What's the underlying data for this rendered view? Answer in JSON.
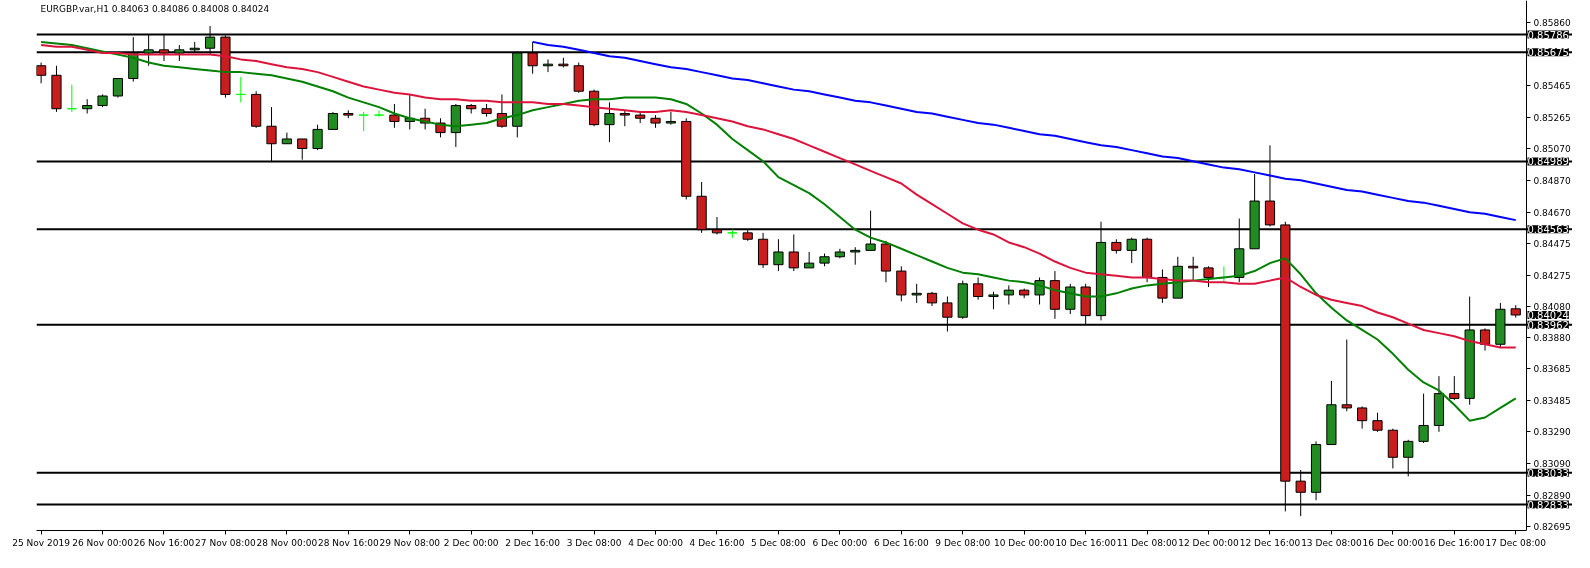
{
  "chart_data": {
    "type": "candlestick",
    "title": "EURGBP.var,H1  0.84063 0.84086 0.84008 0.84024",
    "categories": [
      "25 Nov 2019",
      null,
      null,
      null,
      "26 Nov 00:00",
      null,
      null,
      null,
      "26 Nov 16:00",
      null,
      null,
      null,
      "27 Nov 08:00",
      null,
      null,
      null,
      "28 Nov 00:00",
      null,
      null,
      null,
      "28 Nov 16:00",
      null,
      null,
      null,
      "29 Nov 08:00",
      null,
      null,
      null,
      "2 Dec 00:00",
      null,
      null,
      null,
      "2 Dec 16:00",
      null,
      null,
      null,
      "3 Dec 08:00",
      null,
      null,
      null,
      "4 Dec 00:00",
      null,
      null,
      null,
      "4 Dec 16:00",
      null,
      null,
      null,
      "5 Dec 08:00",
      null,
      null,
      null,
      "6 Dec 00:00",
      null,
      null,
      null,
      "6 Dec 16:00",
      null,
      null,
      null,
      "9 Dec 08:00",
      null,
      null,
      null,
      "10 Dec 00:00",
      null,
      null,
      null,
      "10 Dec 16:00",
      null,
      null,
      null,
      "11 Dec 08:00",
      null,
      null,
      null,
      "12 Dec 00:00",
      null,
      null,
      null,
      "12 Dec 16:00",
      null,
      null,
      null,
      "13 Dec 08:00",
      null,
      null,
      null,
      "16 Dec 00:00",
      null,
      null,
      null,
      "16 Dec 16:00",
      null,
      null,
      null,
      "17 Dec 08:00"
    ],
    "ohlc": [
      [
        0.8559,
        0.8561,
        0.8548,
        0.8553
      ],
      [
        0.8553,
        0.8559,
        0.853,
        0.8532
      ],
      [
        0.8532,
        0.8547,
        0.853,
        0.8532
      ],
      [
        0.8532,
        0.8538,
        0.8529,
        0.8534
      ],
      [
        0.8534,
        0.8541,
        0.8533,
        0.854
      ],
      [
        0.854,
        0.8551,
        0.8539,
        0.8551
      ],
      [
        0.8551,
        0.8577,
        0.8549,
        0.8567
      ],
      [
        0.8567,
        0.8579,
        0.8559,
        0.8569
      ],
      [
        0.8569,
        0.8579,
        0.8562,
        0.8567
      ],
      [
        0.8567,
        0.8572,
        0.8562,
        0.8569
      ],
      [
        0.8569,
        0.8574,
        0.8567,
        0.857
      ],
      [
        0.857,
        0.8584,
        0.8566,
        0.8577
      ],
      [
        0.8577,
        0.8578,
        0.8539,
        0.8541
      ],
      [
        0.8541,
        0.8552,
        0.8536,
        0.8541
      ],
      [
        0.8541,
        0.8543,
        0.852,
        0.8521
      ],
      [
        0.8521,
        0.8533,
        0.8499,
        0.851
      ],
      [
        0.851,
        0.8517,
        0.851,
        0.8513
      ],
      [
        0.8513,
        0.8513,
        0.85,
        0.8507
      ],
      [
        0.8507,
        0.8522,
        0.8506,
        0.8519
      ],
      [
        0.8519,
        0.853,
        0.8519,
        0.8529
      ],
      [
        0.8529,
        0.8531,
        0.8526,
        0.8528
      ],
      [
        0.8528,
        0.853,
        0.8518,
        0.8528
      ],
      [
        0.8528,
        0.8531,
        0.8527,
        0.8528
      ],
      [
        0.8528,
        0.8535,
        0.852,
        0.8524
      ],
      [
        0.8524,
        0.8541,
        0.8519,
        0.8526
      ],
      [
        0.8526,
        0.8532,
        0.8519,
        0.8523
      ],
      [
        0.8523,
        0.8526,
        0.8514,
        0.8517
      ],
      [
        0.8517,
        0.8535,
        0.8508,
        0.8534
      ],
      [
        0.8534,
        0.8535,
        0.8529,
        0.8532
      ],
      [
        0.8532,
        0.8535,
        0.8527,
        0.8529
      ],
      [
        0.8529,
        0.8541,
        0.852,
        0.8521
      ],
      [
        0.8521,
        0.8568,
        0.8514,
        0.8567
      ],
      [
        0.8567,
        0.8574,
        0.8554,
        0.8559
      ],
      [
        0.8559,
        0.8563,
        0.8555,
        0.856
      ],
      [
        0.856,
        0.8564,
        0.8558,
        0.8559
      ],
      [
        0.8559,
        0.8561,
        0.8542,
        0.8543
      ],
      [
        0.8543,
        0.8544,
        0.8521,
        0.8522
      ],
      [
        0.8522,
        0.8536,
        0.8511,
        0.8529
      ],
      [
        0.8529,
        0.8531,
        0.8521,
        0.8528
      ],
      [
        0.8528,
        0.853,
        0.8523,
        0.8526
      ],
      [
        0.8526,
        0.8528,
        0.852,
        0.8523
      ],
      [
        0.8523,
        0.853,
        0.8522,
        0.8524
      ],
      [
        0.8524,
        0.8526,
        0.8475,
        0.8477
      ],
      [
        0.8477,
        0.8486,
        0.8454,
        0.8456
      ],
      [
        0.8456,
        0.8464,
        0.8453,
        0.8454
      ],
      [
        0.8454,
        0.8456,
        0.8451,
        0.8454
      ],
      [
        0.8454,
        0.8456,
        0.8449,
        0.845
      ],
      [
        0.845,
        0.8454,
        0.8432,
        0.8434
      ],
      [
        0.8434,
        0.845,
        0.843,
        0.8442
      ],
      [
        0.8442,
        0.8453,
        0.843,
        0.8432
      ],
      [
        0.8432,
        0.8442,
        0.8432,
        0.8435
      ],
      [
        0.8435,
        0.8441,
        0.8433,
        0.8439
      ],
      [
        0.8439,
        0.8444,
        0.8438,
        0.8442
      ],
      [
        0.8442,
        0.8445,
        0.8434,
        0.8443
      ],
      [
        0.8443,
        0.8468,
        0.8443,
        0.8447
      ],
      [
        0.8447,
        0.8449,
        0.8423,
        0.843
      ],
      [
        0.843,
        0.8433,
        0.8411,
        0.8415
      ],
      [
        0.8415,
        0.8422,
        0.841,
        0.8416
      ],
      [
        0.8416,
        0.8417,
        0.8408,
        0.841
      ],
      [
        0.841,
        0.8414,
        0.8392,
        0.8401
      ],
      [
        0.8401,
        0.8424,
        0.84,
        0.8422
      ],
      [
        0.8422,
        0.8426,
        0.8412,
        0.8414
      ],
      [
        0.8414,
        0.8417,
        0.8406,
        0.8415
      ],
      [
        0.8415,
        0.8421,
        0.8409,
        0.8418
      ],
      [
        0.8418,
        0.8419,
        0.8413,
        0.8415
      ],
      [
        0.8415,
        0.8426,
        0.8409,
        0.8424
      ],
      [
        0.8424,
        0.843,
        0.84,
        0.8406
      ],
      [
        0.8406,
        0.8422,
        0.8403,
        0.842
      ],
      [
        0.842,
        0.8422,
        0.8396,
        0.8402
      ],
      [
        0.8402,
        0.8461,
        0.8399,
        0.8448
      ],
      [
        0.8448,
        0.845,
        0.8441,
        0.8443
      ],
      [
        0.8443,
        0.8451,
        0.8435,
        0.845
      ],
      [
        0.845,
        0.8451,
        0.8423,
        0.8426
      ],
      [
        0.8426,
        0.8431,
        0.841,
        0.8413
      ],
      [
        0.8413,
        0.8439,
        0.8413,
        0.8433
      ],
      [
        0.8433,
        0.8439,
        0.8424,
        0.8432
      ],
      [
        0.8432,
        0.8433,
        0.842,
        0.8426
      ],
      [
        0.8426,
        0.8433,
        0.8423,
        0.8426
      ],
      [
        0.8426,
        0.8463,
        0.8423,
        0.8444
      ],
      [
        0.8444,
        0.8491,
        0.8444,
        0.8474
      ],
      [
        0.8474,
        0.8509,
        0.8458,
        0.8459
      ],
      [
        0.8459,
        0.8461,
        0.8279,
        0.8298
      ],
      [
        0.8298,
        0.8305,
        0.8276,
        0.8291
      ],
      [
        0.8291,
        0.8323,
        0.8286,
        0.8321
      ],
      [
        0.8321,
        0.8361,
        0.8321,
        0.8346
      ],
      [
        0.8346,
        0.8387,
        0.8342,
        0.8344
      ],
      [
        0.8344,
        0.8345,
        0.8331,
        0.8336
      ],
      [
        0.8336,
        0.8341,
        0.8329,
        0.833
      ],
      [
        0.833,
        0.8331,
        0.8306,
        0.8313
      ],
      [
        0.8313,
        0.8324,
        0.8301,
        0.8323
      ],
      [
        0.8323,
        0.8353,
        0.8322,
        0.8333
      ],
      [
        0.8333,
        0.8364,
        0.8329,
        0.8353
      ],
      [
        0.8353,
        0.8364,
        0.8349,
        0.835
      ],
      [
        0.835,
        0.8414,
        0.8346,
        0.8393
      ],
      [
        0.8393,
        0.8394,
        0.838,
        0.8384
      ],
      [
        0.8384,
        0.841,
        0.8382,
        0.8406
      ],
      [
        0.84063,
        0.84086,
        0.84008,
        0.84024
      ]
    ],
    "colors": [
      "#c81e1e",
      "#c81e1e",
      "#00ff00",
      "#228b22",
      "#228b22",
      "#228b22",
      "#228b22",
      "#228b22",
      "#c81e1e",
      "#228b22",
      "#228b22",
      "#228b22",
      "#c81e1e",
      "#00ff00",
      "#c81e1e",
      "#c81e1e",
      "#228b22",
      "#c81e1e",
      "#228b22",
      "#228b22",
      "#c81e1e",
      "#00ff00",
      "#00ff00",
      "#c81e1e",
      "#228b22",
      "#c81e1e",
      "#c81e1e",
      "#228b22",
      "#c81e1e",
      "#c81e1e",
      "#c81e1e",
      "#228b22",
      "#c81e1e",
      "#228b22",
      "#c81e1e",
      "#c81e1e",
      "#c81e1e",
      "#228b22",
      "#c81e1e",
      "#c81e1e",
      "#c81e1e",
      "#228b22",
      "#c81e1e",
      "#c81e1e",
      "#c81e1e",
      "#00ff00",
      "#c81e1e",
      "#c81e1e",
      "#228b22",
      "#c81e1e",
      "#228b22",
      "#228b22",
      "#228b22",
      "#228b22",
      "#228b22",
      "#c81e1e",
      "#c81e1e",
      "#228b22",
      "#c81e1e",
      "#c81e1e",
      "#228b22",
      "#c81e1e",
      "#228b22",
      "#228b22",
      "#c81e1e",
      "#228b22",
      "#c81e1e",
      "#228b22",
      "#c81e1e",
      "#228b22",
      "#c81e1e",
      "#228b22",
      "#c81e1e",
      "#c81e1e",
      "#228b22",
      "#c81e1e",
      "#c81e1e",
      "#00ff00",
      "#228b22",
      "#228b22",
      "#c81e1e",
      "#c81e1e",
      "#c81e1e",
      "#228b22",
      "#228b22",
      "#c81e1e",
      "#c81e1e",
      "#c81e1e",
      "#c81e1e",
      "#228b22",
      "#228b22",
      "#228b22",
      "#c81e1e",
      "#228b22",
      "#c81e1e",
      "#228b22",
      "#c81e1e"
    ],
    "series": [
      {
        "type": "line",
        "color": "#008000",
        "values": [
          0.8574,
          0.8573,
          0.8572,
          0.857,
          0.8568,
          0.8566,
          0.8564,
          0.8561,
          0.8559,
          0.8558,
          0.8557,
          0.8556,
          0.8555,
          0.8555,
          0.8554,
          0.8553,
          0.8551,
          0.8549,
          0.8546,
          0.8543,
          0.8539,
          0.8536,
          0.8533,
          0.8529,
          0.8526,
          0.8524,
          0.8522,
          0.8521,
          0.8522,
          0.8523,
          0.8526,
          0.8528,
          0.8531,
          0.8533,
          0.8535,
          0.8537,
          0.8538,
          0.8538,
          0.8539,
          0.8539,
          0.8539,
          0.8538,
          0.8535,
          0.8529,
          0.8522,
          0.8513,
          0.8506,
          0.8499,
          0.8489,
          0.8484,
          0.8479,
          0.8472,
          0.8464,
          0.8456,
          0.8451,
          0.8448,
          0.8444,
          0.844,
          0.8436,
          0.8432,
          0.8429,
          0.8428,
          0.8426,
          0.8424,
          0.8423,
          0.8421,
          0.8418,
          0.8416,
          0.8414,
          0.8414,
          0.8416,
          0.8419,
          0.8421,
          0.8422,
          0.8423,
          0.8424,
          0.8425,
          0.8426,
          0.8427,
          0.843,
          0.8435,
          0.8438,
          0.8428,
          0.8416,
          0.8407,
          0.8399,
          0.8393,
          0.8387,
          0.8378,
          0.8368,
          0.836,
          0.8355,
          0.8346,
          0.8336,
          0.8338,
          0.8344,
          0.835
        ]
      },
      {
        "type": "line",
        "color": "#dc143c",
        "values": [
          0.8572,
          0.8571,
          0.8571,
          0.8569,
          0.8567,
          0.8567,
          0.8566,
          0.8566,
          0.8566,
          0.8566,
          0.8566,
          0.8566,
          0.8565,
          0.8563,
          0.8562,
          0.856,
          0.8558,
          0.8557,
          0.8555,
          0.8552,
          0.8549,
          0.8546,
          0.8544,
          0.8542,
          0.8541,
          0.8539,
          0.8538,
          0.8538,
          0.8537,
          0.8537,
          0.8536,
          0.8536,
          0.8536,
          0.8535,
          0.8535,
          0.8534,
          0.8533,
          0.8532,
          0.8531,
          0.853,
          0.853,
          0.8531,
          0.853,
          0.8528,
          0.8526,
          0.8524,
          0.8521,
          0.8519,
          0.8516,
          0.8513,
          0.8509,
          0.8505,
          0.8501,
          0.8497,
          0.8493,
          0.8489,
          0.8485,
          0.8478,
          0.8472,
          0.8466,
          0.846,
          0.8456,
          0.8453,
          0.8448,
          0.8445,
          0.8441,
          0.8436,
          0.8432,
          0.8429,
          0.8428,
          0.8427,
          0.8426,
          0.8426,
          0.8425,
          0.8424,
          0.8424,
          0.8423,
          0.8423,
          0.8422,
          0.8422,
          0.8424,
          0.8426,
          0.842,
          0.8415,
          0.8412,
          0.841,
          0.8408,
          0.8404,
          0.8401,
          0.8397,
          0.8393,
          0.8391,
          0.8389,
          0.8386,
          0.8384,
          0.8382,
          0.8382
        ]
      },
      {
        "type": "line",
        "color": "#0000ff",
        "values": [
          null,
          null,
          null,
          null,
          null,
          null,
          null,
          null,
          null,
          null,
          null,
          null,
          null,
          null,
          null,
          null,
          null,
          null,
          null,
          null,
          null,
          null,
          null,
          null,
          null,
          null,
          null,
          null,
          null,
          null,
          null,
          null,
          0.8574,
          0.8572,
          0.8571,
          0.8569,
          0.8567,
          0.8565,
          0.8564,
          0.8562,
          0.856,
          0.8558,
          0.8557,
          0.8555,
          0.8553,
          0.8551,
          0.855,
          0.8548,
          0.8546,
          0.8544,
          0.8543,
          0.8541,
          0.8539,
          0.8537,
          0.8536,
          0.8534,
          0.8532,
          0.853,
          0.8529,
          0.8527,
          0.8525,
          0.8523,
          0.8522,
          0.852,
          0.8518,
          0.8516,
          0.8515,
          0.8513,
          0.8511,
          0.8509,
          0.8508,
          0.8506,
          0.8504,
          0.8502,
          0.8501,
          0.8499,
          0.8497,
          0.8495,
          0.8494,
          0.8492,
          0.849,
          0.8488,
          0.8487,
          0.8485,
          0.8483,
          0.8481,
          0.848,
          0.8478,
          0.8476,
          0.8474,
          0.8473,
          0.8471,
          0.8469,
          0.8467,
          0.8466,
          0.8464,
          0.8462
        ]
      }
    ],
    "ref_lines": [
      {
        "axis": "y",
        "value": 0.85786,
        "label": "0.85786",
        "color": "#000000"
      },
      {
        "axis": "y",
        "value": 0.85675,
        "label": "0.85675",
        "color": "#000000"
      },
      {
        "axis": "y",
        "value": 0.84989,
        "label": "0.84989",
        "color": "#000000"
      },
      {
        "axis": "y",
        "value": 0.84563,
        "label": "0.84563",
        "color": "#000000"
      },
      {
        "axis": "y",
        "value": 0.83962,
        "label": "0.83962",
        "color": "#000000"
      },
      {
        "axis": "y",
        "value": 0.83033,
        "label": "0.83033",
        "color": "#000000"
      },
      {
        "axis": "y",
        "value": 0.82833,
        "label": "0.82833",
        "color": "#000000"
      }
    ],
    "annotations": [
      "0.84024"
    ],
    "ylim": [
      0.8267,
      0.86
    ],
    "yticks": [
      {
        "value": 0.8586,
        "label": "0.85860"
      },
      {
        "value": 0.85465,
        "label": "0.85465"
      },
      {
        "value": 0.85265,
        "label": "0.85265"
      },
      {
        "value": 0.8507,
        "label": "0.85070"
      },
      {
        "value": 0.8487,
        "label": "0.84870"
      },
      {
        "value": 0.8467,
        "label": "0.84670"
      },
      {
        "value": 0.84475,
        "label": "0.84475"
      },
      {
        "value": 0.84275,
        "label": "0.84275"
      },
      {
        "value": 0.8408,
        "label": "0.84080"
      },
      {
        "value": 0.8388,
        "label": "0.83880"
      },
      {
        "value": 0.83685,
        "label": "0.83685"
      },
      {
        "value": 0.83485,
        "label": "0.83485"
      },
      {
        "value": 0.8329,
        "label": "0.83290"
      },
      {
        "value": 0.8309,
        "label": "0.83090"
      },
      {
        "value": 0.8289,
        "label": "0.82890"
      },
      {
        "value": 0.82695,
        "label": "0.82695"
      }
    ]
  }
}
